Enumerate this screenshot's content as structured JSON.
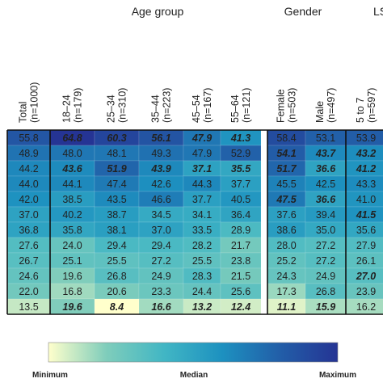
{
  "chart_data": {
    "type": "heatmap",
    "group_headers": [
      "Age group",
      "Gender",
      "LS"
    ],
    "columns": [
      {
        "label": "Total",
        "sub": "(n=1000)"
      },
      {
        "label": "18–24",
        "sub": "(n=179)"
      },
      {
        "label": "25–34",
        "sub": "(n=310)"
      },
      {
        "label": "35–44",
        "sub": "(n=223)"
      },
      {
        "label": "45–54",
        "sub": "(n=167)"
      },
      {
        "label": "55–64",
        "sub": "(n=121)"
      },
      {
        "label": "Female",
        "sub": "(n=503)"
      },
      {
        "label": "Male",
        "sub": "(n=497)"
      },
      {
        "label": "5 to 7",
        "sub": "(n=597)"
      }
    ],
    "values": [
      [
        55.8,
        64.8,
        60.3,
        56.1,
        47.9,
        41.3,
        58.4,
        53.1,
        53.9
      ],
      [
        48.9,
        48.0,
        48.1,
        49.3,
        47.9,
        52.9,
        54.1,
        43.7,
        43.2
      ],
      [
        44.2,
        43.6,
        51.9,
        43.9,
        37.1,
        35.5,
        51.7,
        36.6,
        41.2
      ],
      [
        44.0,
        44.1,
        47.4,
        42.6,
        44.3,
        37.7,
        45.5,
        42.5,
        43.3
      ],
      [
        42.0,
        38.5,
        43.5,
        46.6,
        37.7,
        40.5,
        47.5,
        36.6,
        41.0
      ],
      [
        37.0,
        40.2,
        38.7,
        34.5,
        34.1,
        36.4,
        37.6,
        39.4,
        41.5
      ],
      [
        36.8,
        35.8,
        38.1,
        37.0,
        33.5,
        28.9,
        38.6,
        35.0,
        35.6
      ],
      [
        27.6,
        24.0,
        29.4,
        29.4,
        28.2,
        21.7,
        28.0,
        27.2,
        27.9
      ],
      [
        26.7,
        25.1,
        25.5,
        27.2,
        25.5,
        23.8,
        25.2,
        27.2,
        26.1
      ],
      [
        24.6,
        19.6,
        26.8,
        24.9,
        28.3,
        21.5,
        24.3,
        24.9,
        27.0
      ],
      [
        22.0,
        16.8,
        20.6,
        23.3,
        24.4,
        25.6,
        17.3,
        26.8,
        23.9
      ],
      [
        13.5,
        19.6,
        8.4,
        16.6,
        13.2,
        12.4,
        11.1,
        15.9,
        16.2
      ]
    ],
    "bold_italic": [
      [
        false,
        true,
        true,
        true,
        true,
        true,
        false,
        false,
        false
      ],
      [
        false,
        false,
        false,
        false,
        false,
        false,
        true,
        true,
        true
      ],
      [
        false,
        true,
        true,
        true,
        true,
        true,
        true,
        true,
        true
      ],
      [
        false,
        false,
        false,
        false,
        false,
        false,
        false,
        false,
        false
      ],
      [
        false,
        false,
        false,
        false,
        false,
        false,
        true,
        true,
        false
      ],
      [
        false,
        false,
        false,
        false,
        false,
        false,
        false,
        false,
        true
      ],
      [
        false,
        false,
        false,
        false,
        false,
        false,
        false,
        false,
        false
      ],
      [
        false,
        false,
        false,
        false,
        false,
        false,
        false,
        false,
        false
      ],
      [
        false,
        false,
        false,
        false,
        false,
        false,
        false,
        false,
        false
      ],
      [
        false,
        false,
        false,
        false,
        false,
        false,
        false,
        false,
        true
      ],
      [
        false,
        false,
        false,
        false,
        false,
        false,
        false,
        false,
        false
      ],
      [
        false,
        true,
        true,
        true,
        true,
        true,
        true,
        true,
        false
      ]
    ],
    "value_range": [
      8.4,
      64.8
    ],
    "colors": [
      "#ffffcc",
      "#7fcdbb",
      "#41b6c4",
      "#1d91c0",
      "#225ea8",
      "#253494"
    ],
    "legend": {
      "min_label": "Minimum",
      "median_label": "Median",
      "max_label": "Maximum"
    }
  }
}
